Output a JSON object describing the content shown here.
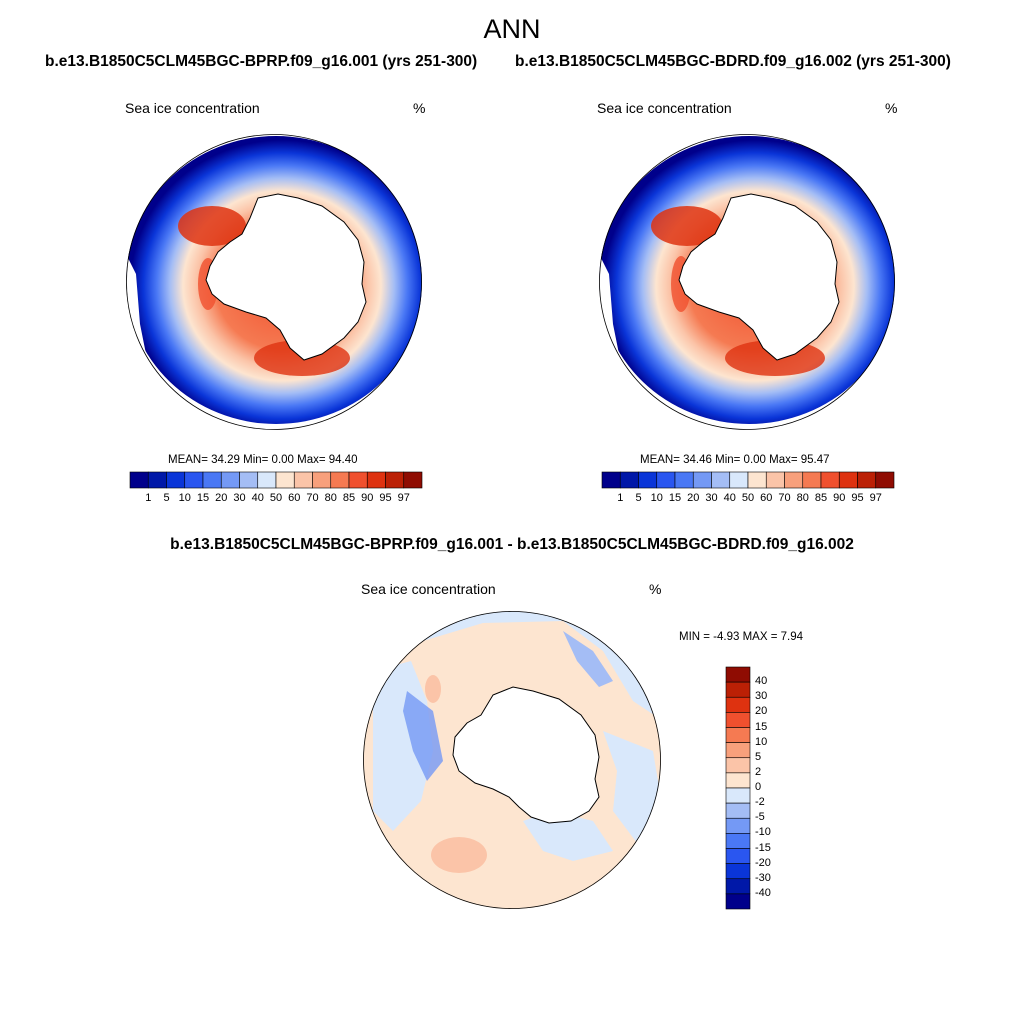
{
  "title": "ANN",
  "panels": [
    {
      "case_name": "b.e13.B1850C5CLM45BGC-BPRP.f09_g16.001 (yrs 251-300)",
      "variable": "Sea ice concentration",
      "units": "%",
      "stats": "MEAN=  34.29  Min=   0.00  Max=  94.40"
    },
    {
      "case_name": "b.e13.B1850C5CLM45BGC-BDRD.f09_g16.002 (yrs 251-300)",
      "variable": "Sea ice concentration",
      "units": "%",
      "stats": "MEAN=  34.46  Min=   0.00  Max=  95.47"
    }
  ],
  "difference": {
    "title": "b.e13.B1850C5CLM45BGC-BPRP.f09_g16.001 - b.e13.B1850C5CLM45BGC-BDRD.f09_g16.002",
    "variable": "Sea ice concentration",
    "units": "%",
    "stats": "MIN =  -4.93 MAX =   7.94"
  },
  "colorbar_main": {
    "labels": [
      "1",
      "5",
      "10",
      "15",
      "20",
      "30",
      "40",
      "50",
      "60",
      "70",
      "80",
      "85",
      "90",
      "95",
      "97"
    ],
    "colors": [
      "#00008b",
      "#0018a8",
      "#0a35d8",
      "#2a56f0",
      "#4a78f5",
      "#7499f5",
      "#a4bdf5",
      "#d9e8fb",
      "#fde5d0",
      "#fbc4a8",
      "#f8a07c",
      "#f57a52",
      "#f0502e",
      "#de3210",
      "#bb2005",
      "#8f0c02"
    ]
  },
  "colorbar_diff": {
    "labels": [
      "40",
      "30",
      "20",
      "15",
      "10",
      "5",
      "2",
      "0",
      "-2",
      "-5",
      "-10",
      "-15",
      "-20",
      "-30",
      "-40"
    ],
    "colors": [
      "#8f0c02",
      "#bb2005",
      "#de3210",
      "#f0502e",
      "#f57a52",
      "#f8a07c",
      "#fbc4a8",
      "#fde5d0",
      "#d9e8fb",
      "#a4bdf5",
      "#7499f5",
      "#4a78f5",
      "#2a56f0",
      "#0a35d8",
      "#0018a8",
      "#00008b"
    ]
  }
}
